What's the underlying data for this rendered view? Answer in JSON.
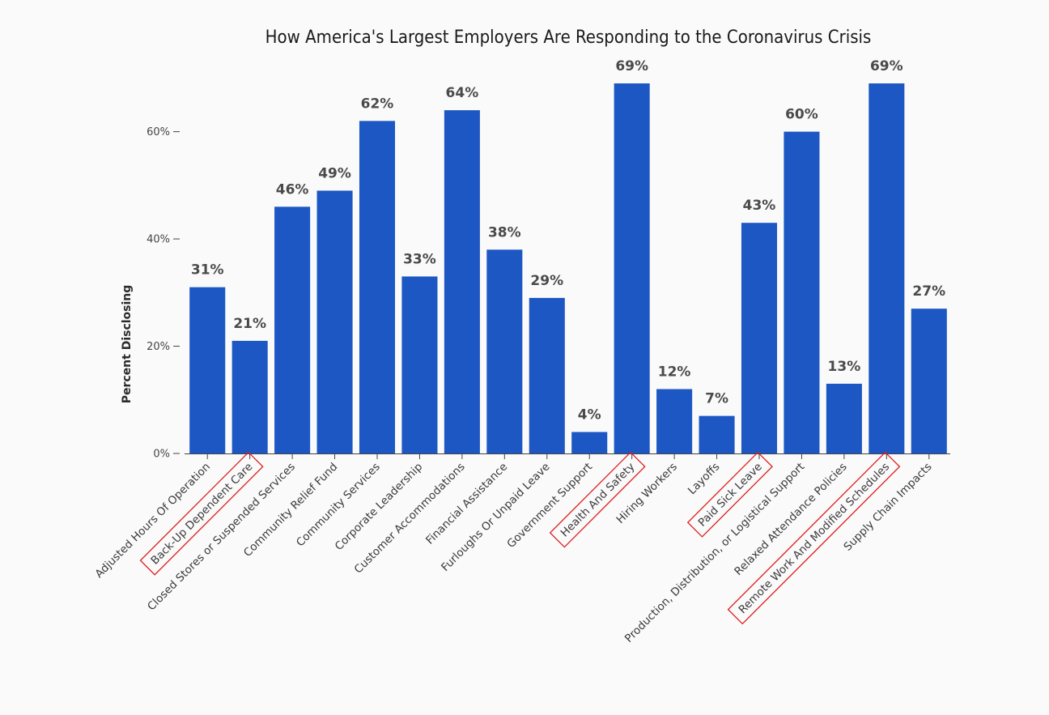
{
  "chart_data": {
    "type": "bar",
    "title": "How America's Largest Employers Are Responding to the Coronavirus Crisis",
    "ylabel": "Percent Disclosing",
    "xlabel": "",
    "ylim": [
      0,
      69
    ],
    "yticks": [
      {
        "value": 0,
        "label": "0%"
      },
      {
        "value": 20,
        "label": "20%"
      },
      {
        "value": 40,
        "label": "40%"
      },
      {
        "value": 60,
        "label": "60%"
      }
    ],
    "categories": [
      "Adjusted Hours Of Operation",
      "Back-Up Dependent Care",
      "Closed Stores or Suspended Services",
      "Community Relief Fund",
      "Community Services",
      "Corporate Leadership",
      "Customer Accommodations",
      "Financial Assistance",
      "Furloughs Or Unpaid Leave",
      "Government Support",
      "Health And Safety",
      "Hiring Workers",
      "Layoffs",
      "Paid Sick Leave",
      "Production, Distribution, or Logistical Support",
      "Relaxed Attendance Policies",
      "Remote Work And Modified Schedules",
      "Supply Chain Impacts"
    ],
    "values": [
      31,
      21,
      46,
      49,
      62,
      33,
      64,
      38,
      29,
      4,
      69,
      12,
      7,
      43,
      60,
      13,
      69,
      27
    ],
    "value_labels": [
      "31%",
      "21%",
      "46%",
      "49%",
      "62%",
      "33%",
      "64%",
      "38%",
      "29%",
      "4%",
      "69%",
      "12%",
      "7%",
      "43%",
      "60%",
      "13%",
      "69%",
      "27%"
    ],
    "bar_color": "#1c57c4",
    "highlight_color": "#e01b1b",
    "highlighted_categories": [
      "Back-Up Dependent Care",
      "Health And Safety",
      "Paid Sick Leave",
      "Remote Work And Modified Schedules"
    ],
    "grid": false,
    "legend": "none"
  }
}
